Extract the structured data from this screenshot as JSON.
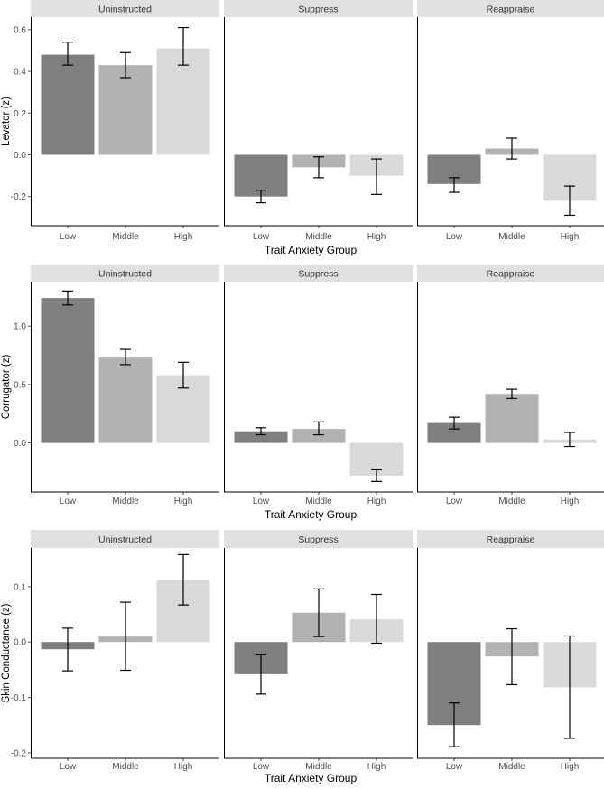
{
  "chart_data": [
    {
      "type": "bar",
      "title": "",
      "ylabel": "Levator (z)",
      "xlabel": "Trait Anxiety Group",
      "ylim": [
        -0.34,
        0.66
      ],
      "yticks": [
        -0.2,
        0.0,
        0.2,
        0.4,
        0.6
      ],
      "ytick_labels": [
        "-0.2",
        "0.0",
        "0.2",
        "0.4",
        "0.6"
      ],
      "categories": [
        "Low",
        "Middle",
        "High"
      ],
      "facets": [
        {
          "label": "Uninstructed",
          "values": [
            0.48,
            0.43,
            0.51
          ],
          "err_low": [
            0.43,
            0.37,
            0.43
          ],
          "err_high": [
            0.54,
            0.49,
            0.61
          ]
        },
        {
          "label": "Suppress",
          "values": [
            -0.2,
            -0.06,
            -0.1
          ],
          "err_low": [
            -0.23,
            -0.11,
            -0.19
          ],
          "err_high": [
            -0.17,
            -0.01,
            -0.02
          ]
        },
        {
          "label": "Reappraise",
          "values": [
            -0.14,
            0.03,
            -0.22
          ],
          "err_low": [
            -0.18,
            -0.02,
            -0.29
          ],
          "err_high": [
            -0.11,
            0.08,
            -0.15
          ]
        }
      ]
    },
    {
      "type": "bar",
      "title": "",
      "ylabel": "Corrugator (z)",
      "xlabel": "Trait Anxiety Group",
      "ylim": [
        -0.42,
        1.38
      ],
      "yticks": [
        0.0,
        0.5,
        1.0
      ],
      "ytick_labels": [
        "0.0",
        "0.5",
        "1.0"
      ],
      "categories": [
        "Low",
        "Middle",
        "High"
      ],
      "facets": [
        {
          "label": "Uninstructed",
          "values": [
            1.24,
            0.73,
            0.58
          ],
          "err_low": [
            1.18,
            0.67,
            0.47
          ],
          "err_high": [
            1.3,
            0.8,
            0.69
          ]
        },
        {
          "label": "Suppress",
          "values": [
            0.1,
            0.12,
            -0.28
          ],
          "err_low": [
            0.07,
            0.07,
            -0.33
          ],
          "err_high": [
            0.13,
            0.18,
            -0.23
          ]
        },
        {
          "label": "Reappraise",
          "values": [
            0.17,
            0.42,
            0.03
          ],
          "err_low": [
            0.12,
            0.38,
            -0.03
          ],
          "err_high": [
            0.22,
            0.46,
            0.09
          ]
        }
      ]
    },
    {
      "type": "bar",
      "title": "",
      "ylabel": "Skin Conductance (z)",
      "xlabel": "Trait Anxiety Group",
      "ylim": [
        -0.21,
        0.17
      ],
      "yticks": [
        -0.2,
        -0.1,
        0.0,
        0.1
      ],
      "ytick_labels": [
        "-0.2",
        "-0.1",
        "0.0",
        "0.1"
      ],
      "categories": [
        "Low",
        "Middle",
        "High"
      ],
      "facets": [
        {
          "label": "Uninstructed",
          "values": [
            -0.013,
            0.01,
            0.112
          ],
          "err_low": [
            -0.052,
            -0.051,
            0.067
          ],
          "err_high": [
            0.025,
            0.072,
            0.158
          ]
        },
        {
          "label": "Suppress",
          "values": [
            -0.058,
            0.053,
            0.041
          ],
          "err_low": [
            -0.094,
            0.01,
            -0.002
          ],
          "err_high": [
            -0.023,
            0.096,
            0.086
          ]
        },
        {
          "label": "Reappraise",
          "values": [
            -0.15,
            -0.026,
            -0.082
          ],
          "err_low": [
            -0.189,
            -0.077,
            -0.174
          ],
          "err_high": [
            -0.11,
            0.024,
            0.011
          ]
        }
      ]
    }
  ],
  "colors": {
    "bars": [
      "#7f7f7f",
      "#b2b2b2",
      "#d9d9d9"
    ],
    "strip": "#e0e0e0",
    "axis": "#000000",
    "tick_text": "#4d4d4d",
    "strip_text": "#333333",
    "label_text": "#000000"
  }
}
